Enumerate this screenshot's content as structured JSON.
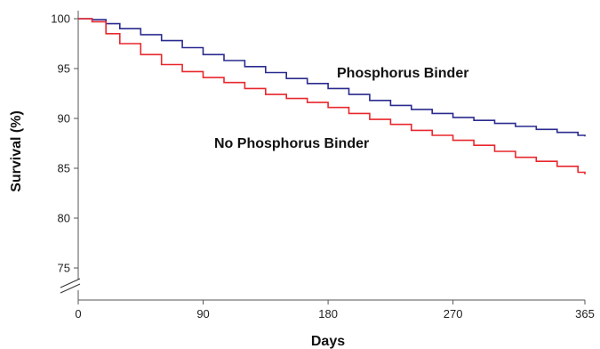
{
  "chart_data": {
    "type": "line",
    "title": "",
    "xlabel": "Days",
    "ylabel": "Survival (%)",
    "xlim": [
      0,
      365
    ],
    "ylim": [
      72,
      101
    ],
    "x_ticks": [
      0,
      90,
      180,
      270,
      365
    ],
    "y_ticks": [
      75,
      80,
      85,
      90,
      95,
      100
    ],
    "axis_break": "y",
    "grid": false,
    "legend": "none",
    "series": [
      {
        "name": "Phosphorus Binder",
        "color": "#2a2a8f",
        "x": [
          0,
          10,
          20,
          30,
          45,
          60,
          75,
          90,
          105,
          120,
          135,
          150,
          165,
          180,
          195,
          210,
          225,
          240,
          255,
          270,
          285,
          300,
          315,
          330,
          345,
          360,
          365
        ],
        "y": [
          100,
          99.9,
          99.5,
          99.0,
          98.4,
          97.8,
          97.1,
          96.4,
          95.8,
          95.2,
          94.6,
          94.0,
          93.5,
          93.0,
          92.4,
          91.8,
          91.3,
          90.9,
          90.5,
          90.1,
          89.8,
          89.5,
          89.2,
          88.9,
          88.6,
          88.3,
          88.2
        ]
      },
      {
        "name": "No Phosphorus Binder",
        "color": "#e8272c",
        "x": [
          0,
          10,
          20,
          30,
          45,
          60,
          75,
          90,
          105,
          120,
          135,
          150,
          165,
          180,
          195,
          210,
          225,
          240,
          255,
          270,
          285,
          300,
          315,
          330,
          345,
          360,
          365
        ],
        "y": [
          100,
          99.7,
          98.5,
          97.5,
          96.4,
          95.4,
          94.7,
          94.1,
          93.6,
          93.0,
          92.4,
          92.0,
          91.6,
          91.1,
          90.5,
          89.9,
          89.4,
          88.8,
          88.3,
          87.8,
          87.3,
          86.7,
          86.1,
          85.7,
          85.2,
          84.6,
          84.4
        ]
      }
    ]
  }
}
